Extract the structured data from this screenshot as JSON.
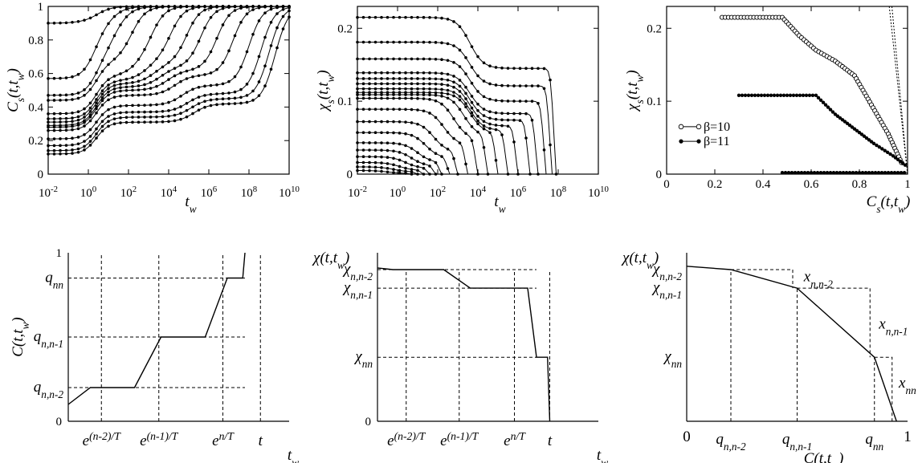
{
  "colors": {
    "ink": "#000000",
    "background": "#ffffff"
  },
  "chart_data": [
    {
      "id": "p1",
      "type": "line",
      "x_scale": "log10",
      "xlim_log10": [
        -2,
        10
      ],
      "ylim": [
        0,
        1
      ],
      "xticks": [
        "10^-2",
        "10^0",
        "10^2",
        "10^4",
        "10^6",
        "10^8",
        "10^10"
      ],
      "yticks": [
        "0",
        "0.2",
        "0.4",
        "0.6",
        "0.8",
        "1"
      ],
      "ylabel": {
        "base": "C",
        "sub": "s",
        "args": "(t,t",
        "argsub": "w",
        "close": ")"
      },
      "xlabel": {
        "base": "t",
        "sub": "w"
      },
      "markers": "filled",
      "series": [
        {
          "start": 0.12,
          "plateau": 0.31,
          "mid": 0.42,
          "sat_log10": 9.9
        },
        {
          "start": 0.14,
          "plateau": 0.34,
          "mid": 0.45,
          "sat_log10": 9.6
        },
        {
          "start": 0.17,
          "plateau": 0.37,
          "mid": 0.48,
          "sat_log10": 9.2
        },
        {
          "start": 0.21,
          "plateau": 0.41,
          "mid": 0.53,
          "sat_log10": 8.6
        },
        {
          "start": 0.26,
          "plateau": 0.47,
          "mid": 0.59,
          "sat_log10": 7.8
        },
        {
          "start": 0.28,
          "plateau": 0.5,
          "mid": 0.62,
          "sat_log10": 7.0
        },
        {
          "start": 0.29,
          "plateau": 0.52,
          "mid": 0.64,
          "sat_log10": 6.2
        },
        {
          "start": 0.31,
          "plateau": 0.54,
          "mid": 0.66,
          "sat_log10": 5.5
        },
        {
          "start": 0.33,
          "plateau": 0.56,
          "mid": 0.68,
          "sat_log10": 4.7
        },
        {
          "start": 0.36,
          "plateau": 0.59,
          "mid": 0.72,
          "sat_log10": 3.8
        },
        {
          "start": 0.44,
          "plateau": 0.67,
          "mid": 0.8,
          "sat_log10": 2.8
        },
        {
          "start": 0.47,
          "plateau": 0.7,
          "mid": 0.83,
          "sat_log10": 1.8
        },
        {
          "start": 0.57,
          "plateau": 0.78,
          "mid": 0.89,
          "sat_log10": 0.8
        },
        {
          "start": 0.9,
          "plateau": 0.97,
          "mid": 0.99,
          "sat_log10": 0.0
        }
      ]
    },
    {
      "id": "p2",
      "type": "line",
      "x_scale": "log10",
      "xlim_log10": [
        -2,
        10
      ],
      "ylim": [
        0,
        0.23
      ],
      "xticks": [
        "10^-2",
        "10^0",
        "10^2",
        "10^4",
        "10^6",
        "10^8",
        "10^10"
      ],
      "yticks": [
        "0",
        "0.1",
        "0.2"
      ],
      "ylabel": {
        "base": "χ",
        "sub": "s",
        "args": "(t,t",
        "argsub": "w",
        "close": ")"
      },
      "xlabel": {
        "base": "t",
        "sub": "w"
      },
      "markers": "filled",
      "series": [
        {
          "start": 0.215,
          "plateau": 0.145,
          "cutoff_log10": 7.9
        },
        {
          "start": 0.181,
          "plateau": 0.121,
          "cutoff_log10": 7.7
        },
        {
          "start": 0.158,
          "plateau": 0.1,
          "cutoff_log10": 7.4
        },
        {
          "start": 0.139,
          "plateau": 0.083,
          "cutoff_log10": 7.0
        },
        {
          "start": 0.131,
          "plateau": 0.074,
          "cutoff_log10": 6.6
        },
        {
          "start": 0.124,
          "plateau": 0.066,
          "cutoff_log10": 6.0
        },
        {
          "start": 0.117,
          "plateau": 0.06,
          "cutoff_log10": 5.5
        },
        {
          "start": 0.112,
          "plateau": 0.056,
          "cutoff_log10": 5.0
        },
        {
          "start": 0.109,
          "plateau": 0.052,
          "cutoff_log10": 4.5
        },
        {
          "start": 0.104,
          "plateau": 0.048,
          "cutoff_log10": 4.0
        },
        {
          "start": 0.089,
          "plateau": 0.04,
          "cutoff_log10": 3.5
        },
        {
          "start": 0.072,
          "plateau": 0.03,
          "cutoff_log10": 3.0
        },
        {
          "start": 0.057,
          "plateau": 0.022,
          "cutoff_log10": 2.6
        },
        {
          "start": 0.043,
          "plateau": 0.016,
          "cutoff_log10": 2.2
        },
        {
          "start": 0.033,
          "plateau": 0.011,
          "cutoff_log10": 1.9
        },
        {
          "start": 0.024,
          "plateau": 0.008,
          "cutoff_log10": 1.6
        },
        {
          "start": 0.016,
          "plateau": 0.005,
          "cutoff_log10": 1.3
        },
        {
          "start": 0.01,
          "plateau": 0.003,
          "cutoff_log10": 1.0
        },
        {
          "start": 0.005,
          "plateau": 0.001,
          "cutoff_log10": 0.7
        }
      ]
    },
    {
      "id": "p3",
      "type": "scatter",
      "xlim": [
        0,
        1
      ],
      "ylim": [
        0,
        0.23
      ],
      "xticks": [
        "0",
        "0.2",
        "0.4",
        "0.6",
        "0.8",
        "1"
      ],
      "yticks": [
        "0",
        "0.1",
        "0.2"
      ],
      "ylabel": {
        "base": "χ",
        "sub": "s",
        "args": "(t,t",
        "argsub": "w",
        "close": ")"
      },
      "xlabel": {
        "base": "C",
        "sub": "s",
        "args": "(t,t",
        "argsub": "w",
        "close": ")"
      },
      "legend": [
        "β=10",
        "β=11"
      ],
      "legend_position": "middle-left",
      "series": [
        {
          "name": "β=10",
          "marker": "open",
          "points": [
            [
              0.23,
              0.215
            ],
            [
              0.48,
              0.215
            ],
            [
              0.55,
              0.19
            ],
            [
              0.62,
              0.17
            ],
            [
              0.7,
              0.155
            ],
            [
              0.78,
              0.135
            ],
            [
              0.85,
              0.095
            ],
            [
              0.92,
              0.055
            ],
            [
              0.98,
              0.012
            ]
          ]
        },
        {
          "name": "β=11",
          "marker": "filled",
          "points": [
            [
              0.3,
              0.108
            ],
            [
              0.62,
              0.108
            ],
            [
              0.7,
              0.082
            ],
            [
              0.78,
              0.062
            ],
            [
              0.86,
              0.042
            ],
            [
              0.94,
              0.025
            ],
            [
              1.0,
              0.01
            ]
          ]
        },
        {
          "name": "β=11",
          "marker": "filled",
          "points": [
            [
              0.48,
              0.002
            ],
            [
              1.0,
              0.002
            ]
          ]
        }
      ],
      "reference_lines": [
        {
          "points": [
            [
              0.924,
              0.23
            ],
            [
              1.0,
              0.0
            ]
          ]
        },
        {
          "points": [
            [
              0.935,
              0.23
            ],
            [
              1.0,
              0.0
            ]
          ]
        }
      ]
    },
    {
      "id": "p4",
      "type": "line",
      "schematic": true,
      "xlim": [
        0,
        1
      ],
      "ylim": [
        0,
        1
      ],
      "yticks_numeric": [
        "0",
        "1"
      ],
      "yticks_symbolic": [
        {
          "label": "q",
          "sub": "nn",
          "value": 0.85
        },
        {
          "label": "q",
          "sub": "n,n-1",
          "value": 0.5
        },
        {
          "label": "q",
          "sub": "n,n-2",
          "value": 0.2
        }
      ],
      "xticks_symbolic": [
        {
          "base": "e",
          "sup": "(n-2)/T",
          "value": 0.07
        },
        {
          "base": "e",
          "sup": "(n-1)/T",
          "value": 0.33
        },
        {
          "base": "e",
          "sup": "n/T",
          "value": 0.62
        },
        {
          "base": "t",
          "sup": "",
          "value": 0.79
        }
      ],
      "ylabel": {
        "base": "C",
        "args": "(t,t",
        "argsub": "w",
        "close": ")"
      },
      "xlabel": {
        "base": "t",
        "sub": "w"
      },
      "curve": [
        [
          0.0,
          0.1
        ],
        [
          0.1,
          0.2
        ],
        [
          0.3,
          0.2
        ],
        [
          0.42,
          0.5
        ],
        [
          0.62,
          0.5
        ],
        [
          0.72,
          0.85
        ],
        [
          0.79,
          0.85
        ],
        [
          0.8,
          1.0
        ]
      ]
    },
    {
      "id": "p5",
      "type": "line",
      "schematic": true,
      "xlim": [
        0,
        1
      ],
      "ylim": [
        0,
        1
      ],
      "yticks_numeric": [
        "0"
      ],
      "yticks_symbolic": [
        {
          "label": "χ",
          "sub": "n,n-2",
          "value": 0.9
        },
        {
          "label": "χ",
          "sub": "n,n-1",
          "value": 0.79
        },
        {
          "label": "χ",
          "sub": "nn",
          "value": 0.38
        }
      ],
      "xticks_symbolic": [
        {
          "base": "e",
          "sup": "(n-2)/T",
          "value": 0.13
        },
        {
          "base": "e",
          "sup": "(n-1)/T",
          "value": 0.37
        },
        {
          "base": "e",
          "sup": "n/T",
          "value": 0.62
        },
        {
          "base": "t",
          "sup": "",
          "value": 0.78
        }
      ],
      "ylabel": {
        "base": "χ",
        "args": "(t,t",
        "argsub": "w",
        "close": ")"
      },
      "xlabel": {
        "base": "t",
        "sub": "w"
      },
      "curve": [
        [
          0.0,
          0.91
        ],
        [
          0.07,
          0.9
        ],
        [
          0.3,
          0.9
        ],
        [
          0.42,
          0.79
        ],
        [
          0.68,
          0.79
        ],
        [
          0.72,
          0.38
        ],
        [
          0.77,
          0.38
        ],
        [
          0.78,
          0.0
        ]
      ]
    },
    {
      "id": "p6",
      "type": "line",
      "schematic": true,
      "xlim": [
        0,
        1
      ],
      "ylim": [
        0,
        1
      ],
      "xticks_numeric": [
        "0",
        "1"
      ],
      "yticks_symbolic": [
        {
          "label": "χ",
          "sub": "n,n-2",
          "value": 0.9
        },
        {
          "label": "χ",
          "sub": "n,n-1",
          "value": 0.79
        },
        {
          "label": "χ",
          "sub": "nn",
          "value": 0.38
        }
      ],
      "xticks_symbolic": [
        {
          "label": "q",
          "sub": "n,n-2",
          "value": 0.2
        },
        {
          "label": "q",
          "sub": "n,n-1",
          "value": 0.5
        },
        {
          "label": "q",
          "sub": "nn",
          "value": 0.85
        }
      ],
      "slope_labels": [
        {
          "label": "x",
          "sub": "n,n-2"
        },
        {
          "label": "x",
          "sub": "n,n-1"
        },
        {
          "label": "x",
          "sub": "nn"
        }
      ],
      "ylabel": {
        "base": "χ",
        "args": "(t,t",
        "argsub": "w",
        "close": ")"
      },
      "xlabel": {
        "base": "C",
        "args": "(t,t",
        "argsub": "w",
        "close": ")"
      },
      "curve": [
        [
          0.0,
          0.92
        ],
        [
          0.2,
          0.9
        ],
        [
          0.5,
          0.79
        ],
        [
          0.85,
          0.38
        ],
        [
          0.95,
          0.0
        ]
      ]
    }
  ]
}
